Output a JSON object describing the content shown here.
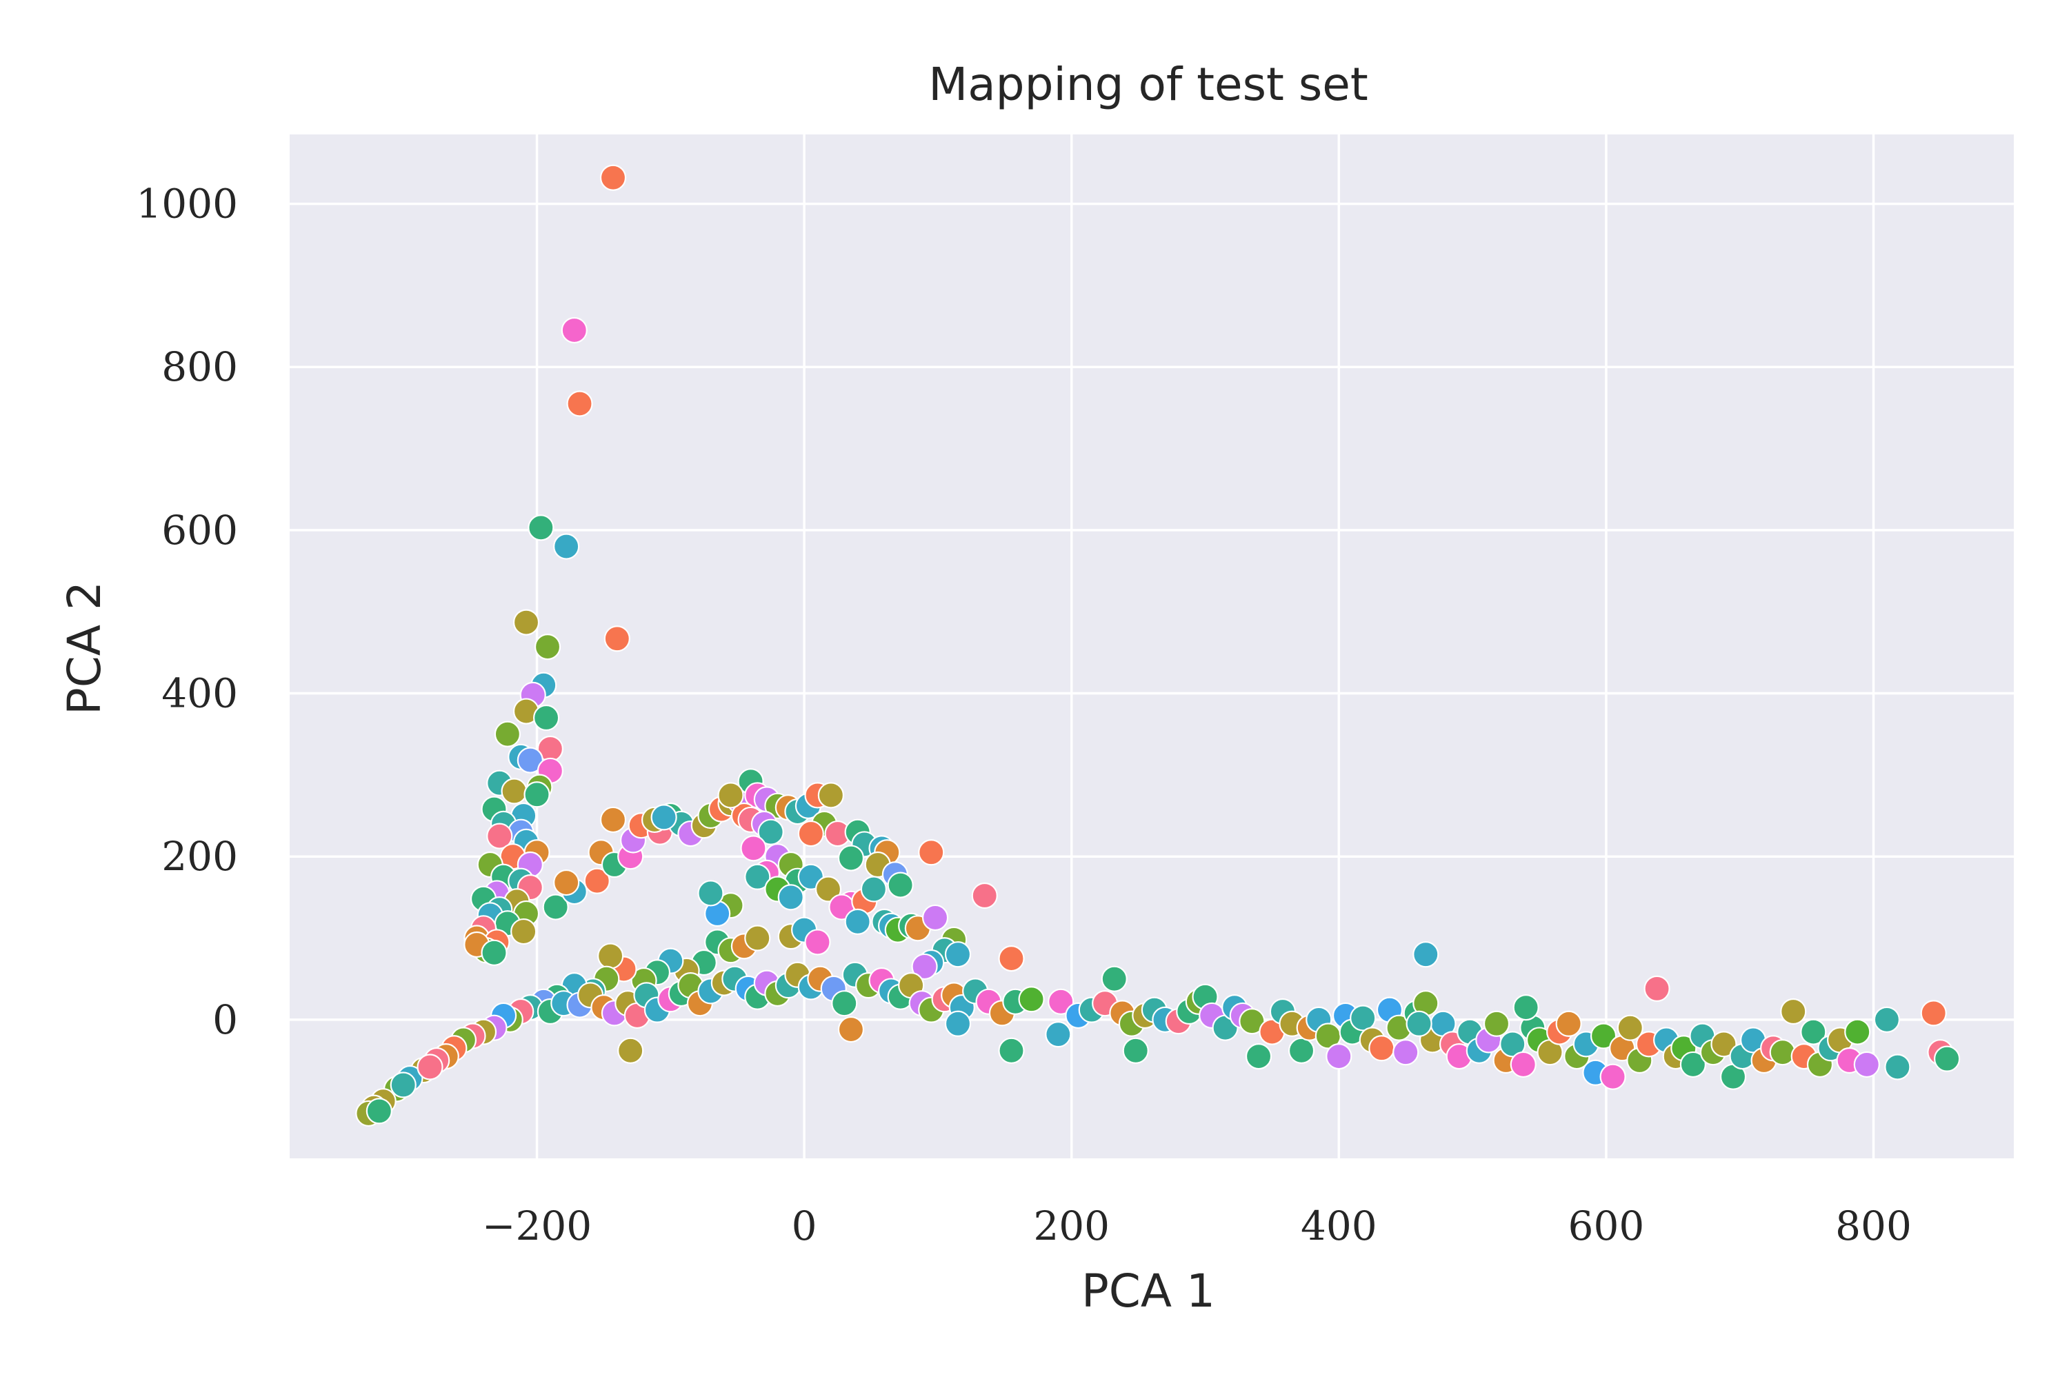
{
  "chart_data": {
    "type": "scatter",
    "title": "Mapping of test set",
    "xlabel": "PCA 1",
    "ylabel": "PCA 2",
    "xlim": [
      -385,
      905
    ],
    "ylim": [
      -170,
      1085
    ],
    "x_ticks": [
      -200,
      0,
      200,
      400,
      600,
      800
    ],
    "x_tick_labels": [
      "−200",
      "0",
      "200",
      "400",
      "600",
      "800"
    ],
    "y_ticks": [
      0,
      200,
      400,
      600,
      800,
      1000
    ],
    "y_tick_labels": [
      "0",
      "200",
      "400",
      "600",
      "800",
      "1000"
    ],
    "grid": true,
    "background": "#eaeaf2",
    "palette": [
      "#f77189",
      "#f7754f",
      "#dc8932",
      "#ae9d31",
      "#77ab31",
      "#33b07a",
      "#36ada4",
      "#38a9c5",
      "#6e9bf4",
      "#cc7af4",
      "#f565cc",
      "#3ba3ec",
      "#50b131",
      "#97a431"
    ],
    "points": [
      [
        -143,
        1032,
        1
      ],
      [
        -172,
        845,
        10
      ],
      [
        -168,
        755,
        1
      ],
      [
        -197,
        603,
        5
      ],
      [
        -178,
        580,
        7
      ],
      [
        -140,
        467,
        1
      ],
      [
        -208,
        487,
        3
      ],
      [
        -192,
        457,
        4
      ],
      [
        -195,
        410,
        7
      ],
      [
        -203,
        398,
        9
      ],
      [
        -208,
        378,
        3
      ],
      [
        -193,
        370,
        5
      ],
      [
        -190,
        332,
        0
      ],
      [
        -222,
        350,
        4
      ],
      [
        -212,
        322,
        7
      ],
      [
        -205,
        318,
        8
      ],
      [
        -190,
        305,
        10
      ],
      [
        -228,
        290,
        6
      ],
      [
        -198,
        285,
        4
      ],
      [
        -217,
        280,
        3
      ],
      [
        -200,
        276,
        5
      ],
      [
        -232,
        258,
        5
      ],
      [
        -210,
        250,
        7
      ],
      [
        -225,
        240,
        6
      ],
      [
        -212,
        230,
        8
      ],
      [
        -228,
        225,
        0
      ],
      [
        -208,
        218,
        7
      ],
      [
        -200,
        205,
        2
      ],
      [
        -218,
        200,
        1
      ],
      [
        -235,
        190,
        4
      ],
      [
        -205,
        190,
        9
      ],
      [
        -225,
        175,
        5
      ],
      [
        -212,
        170,
        6
      ],
      [
        -205,
        162,
        0
      ],
      [
        -230,
        155,
        9
      ],
      [
        -240,
        148,
        5
      ],
      [
        -215,
        145,
        3
      ],
      [
        -228,
        135,
        6
      ],
      [
        -208,
        130,
        4
      ],
      [
        -235,
        128,
        7
      ],
      [
        -222,
        118,
        5
      ],
      [
        -240,
        112,
        0
      ],
      [
        -210,
        108,
        3
      ],
      [
        -245,
        100,
        2
      ],
      [
        -230,
        95,
        1
      ],
      [
        -238,
        85,
        4
      ],
      [
        -245,
        92,
        2
      ],
      [
        -232,
        82,
        5
      ],
      [
        -186,
        138,
        5
      ],
      [
        -172,
        157,
        7
      ],
      [
        -178,
        168,
        2
      ],
      [
        -155,
        170,
        1
      ],
      [
        -152,
        205,
        2
      ],
      [
        -142,
        190,
        5
      ],
      [
        -130,
        200,
        10
      ],
      [
        -128,
        220,
        9
      ],
      [
        -143,
        245,
        2
      ],
      [
        -122,
        238,
        1
      ],
      [
        -108,
        230,
        0
      ],
      [
        -112,
        245,
        3
      ],
      [
        -100,
        250,
        5
      ],
      [
        -92,
        240,
        6
      ],
      [
        -85,
        228,
        9
      ],
      [
        -75,
        238,
        3
      ],
      [
        -70,
        250,
        4
      ],
      [
        -62,
        258,
        1
      ],
      [
        -55,
        265,
        3
      ],
      [
        -48,
        268,
        9
      ],
      [
        -40,
        292,
        5
      ],
      [
        -35,
        275,
        10
      ],
      [
        -28,
        270,
        9
      ],
      [
        -20,
        262,
        4
      ],
      [
        -12,
        260,
        2
      ],
      [
        -5,
        255,
        6
      ],
      [
        3,
        262,
        7
      ],
      [
        10,
        275,
        1
      ],
      [
        20,
        275,
        3
      ],
      [
        15,
        240,
        4
      ],
      [
        25,
        228,
        0
      ],
      [
        5,
        228,
        1
      ],
      [
        40,
        230,
        5
      ],
      [
        45,
        215,
        6
      ],
      [
        35,
        198,
        5
      ],
      [
        58,
        210,
        7
      ],
      [
        62,
        205,
        2
      ],
      [
        55,
        190,
        3
      ],
      [
        68,
        178,
        8
      ],
      [
        72,
        165,
        5
      ],
      [
        95,
        205,
        1
      ],
      [
        -105,
        248,
        7
      ],
      [
        -45,
        250,
        1
      ],
      [
        -40,
        245,
        0
      ],
      [
        -30,
        240,
        9
      ],
      [
        -55,
        275,
        3
      ],
      [
        -25,
        230,
        6
      ],
      [
        -38,
        210,
        10
      ],
      [
        -20,
        200,
        9
      ],
      [
        -10,
        190,
        4
      ],
      [
        -28,
        180,
        10
      ],
      [
        -35,
        175,
        6
      ],
      [
        -5,
        170,
        5
      ],
      [
        5,
        175,
        7
      ],
      [
        -55,
        140,
        4
      ],
      [
        -65,
        130,
        11
      ],
      [
        -70,
        155,
        6
      ],
      [
        -20,
        160,
        12
      ],
      [
        -10,
        150,
        7
      ],
      [
        18,
        160,
        3
      ],
      [
        35,
        142,
        10
      ],
      [
        28,
        138,
        10
      ],
      [
        45,
        145,
        1
      ],
      [
        52,
        160,
        6
      ],
      [
        40,
        120,
        7
      ],
      [
        60,
        120,
        6
      ],
      [
        65,
        115,
        7
      ],
      [
        70,
        110,
        12
      ],
      [
        80,
        115,
        5
      ],
      [
        85,
        112,
        2
      ],
      [
        98,
        125,
        9
      ],
      [
        112,
        98,
        4
      ],
      [
        105,
        85,
        6
      ],
      [
        115,
        80,
        7
      ],
      [
        95,
        70,
        7
      ],
      [
        90,
        65,
        9
      ],
      [
        135,
        152,
        0
      ],
      [
        155,
        75,
        1
      ],
      [
        -65,
        95,
        5
      ],
      [
        -75,
        70,
        5
      ],
      [
        -55,
        85,
        4
      ],
      [
        -45,
        90,
        2
      ],
      [
        -35,
        100,
        3
      ],
      [
        -10,
        102,
        3
      ],
      [
        0,
        110,
        7
      ],
      [
        10,
        95,
        10
      ],
      [
        -88,
        60,
        3
      ],
      [
        -100,
        72,
        7
      ],
      [
        -110,
        58,
        5
      ],
      [
        -120,
        48,
        4
      ],
      [
        -135,
        62,
        1
      ],
      [
        -145,
        78,
        3
      ],
      [
        -148,
        50,
        4
      ],
      [
        -158,
        35,
        6
      ],
      [
        -172,
        42,
        7
      ],
      [
        -185,
        28,
        5
      ],
      [
        -195,
        22,
        8
      ],
      [
        -205,
        15,
        6
      ],
      [
        -212,
        10,
        0
      ],
      [
        -220,
        0,
        4
      ],
      [
        -225,
        5,
        11
      ],
      [
        -232,
        -10,
        9
      ],
      [
        -240,
        -15,
        3
      ],
      [
        -248,
        -20,
        0
      ],
      [
        -255,
        -25,
        4
      ],
      [
        -262,
        -35,
        1
      ],
      [
        -268,
        -45,
        2
      ],
      [
        -275,
        -50,
        0
      ],
      [
        -285,
        -62,
        3
      ],
      [
        -295,
        -72,
        7
      ],
      [
        -305,
        -85,
        4
      ],
      [
        -315,
        -100,
        3
      ],
      [
        -322,
        -108,
        3
      ],
      [
        -326,
        -115,
        13
      ],
      [
        -318,
        -112,
        5
      ],
      [
        -300,
        -80,
        6
      ],
      [
        -280,
        -58,
        0
      ],
      [
        -190,
        10,
        5
      ],
      [
        -180,
        20,
        7
      ],
      [
        -168,
        18,
        8
      ],
      [
        -160,
        30,
        3
      ],
      [
        -150,
        15,
        2
      ],
      [
        -142,
        8,
        9
      ],
      [
        -132,
        20,
        3
      ],
      [
        -125,
        5,
        0
      ],
      [
        -118,
        30,
        6
      ],
      [
        -110,
        12,
        7
      ],
      [
        -100,
        25,
        10
      ],
      [
        -92,
        32,
        5
      ],
      [
        -85,
        42,
        4
      ],
      [
        -78,
        20,
        2
      ],
      [
        -70,
        35,
        7
      ],
      [
        -60,
        45,
        3
      ],
      [
        -52,
        50,
        6
      ],
      [
        -42,
        38,
        11
      ],
      [
        -35,
        28,
        5
      ],
      [
        -28,
        45,
        9
      ],
      [
        -20,
        32,
        4
      ],
      [
        -12,
        42,
        6
      ],
      [
        -5,
        55,
        3
      ],
      [
        5,
        40,
        7
      ],
      [
        12,
        50,
        2
      ],
      [
        22,
        38,
        8
      ],
      [
        30,
        20,
        5
      ],
      [
        38,
        55,
        6
      ],
      [
        48,
        42,
        4
      ],
      [
        58,
        48,
        10
      ],
      [
        65,
        35,
        7
      ],
      [
        72,
        28,
        5
      ],
      [
        80,
        42,
        3
      ],
      [
        88,
        20,
        9
      ],
      [
        95,
        12,
        4
      ],
      [
        105,
        25,
        0
      ],
      [
        112,
        30,
        2
      ],
      [
        118,
        15,
        7
      ],
      [
        128,
        35,
        6
      ],
      [
        138,
        22,
        10
      ],
      [
        148,
        8,
        2
      ],
      [
        158,
        22,
        5
      ],
      [
        170,
        25,
        12
      ],
      [
        -130,
        -38,
        3
      ],
      [
        35,
        -12,
        2
      ],
      [
        115,
        -5,
        7
      ],
      [
        155,
        -38,
        5
      ],
      [
        190,
        -18,
        7
      ],
      [
        192,
        22,
        10
      ],
      [
        205,
        5,
        11
      ],
      [
        215,
        12,
        6
      ],
      [
        225,
        20,
        0
      ],
      [
        232,
        50,
        5
      ],
      [
        238,
        8,
        2
      ],
      [
        245,
        -5,
        4
      ],
      [
        248,
        -38,
        5
      ],
      [
        255,
        5,
        3
      ],
      [
        262,
        12,
        6
      ],
      [
        270,
        0,
        7
      ],
      [
        280,
        -2,
        0
      ],
      [
        288,
        10,
        5
      ],
      [
        295,
        22,
        4
      ],
      [
        300,
        28,
        5
      ],
      [
        305,
        5,
        9
      ],
      [
        315,
        -10,
        6
      ],
      [
        322,
        15,
        7
      ],
      [
        328,
        5,
        9
      ],
      [
        335,
        -2,
        4
      ],
      [
        340,
        -45,
        5
      ],
      [
        350,
        -15,
        1
      ],
      [
        358,
        10,
        6
      ],
      [
        365,
        -5,
        3
      ],
      [
        372,
        -38,
        5
      ],
      [
        378,
        -10,
        2
      ],
      [
        385,
        0,
        7
      ],
      [
        392,
        -20,
        4
      ],
      [
        400,
        -45,
        9
      ],
      [
        405,
        5,
        11
      ],
      [
        410,
        -15,
        5
      ],
      [
        418,
        2,
        6
      ],
      [
        425,
        -25,
        3
      ],
      [
        432,
        -35,
        1
      ],
      [
        438,
        12,
        11
      ],
      [
        445,
        -10,
        4
      ],
      [
        450,
        -40,
        9
      ],
      [
        458,
        8,
        5
      ],
      [
        465,
        20,
        4
      ],
      [
        470,
        -25,
        3
      ],
      [
        478,
        -5,
        7
      ],
      [
        485,
        -30,
        0
      ],
      [
        490,
        -45,
        10
      ],
      [
        498,
        -15,
        6
      ],
      [
        505,
        -38,
        7
      ],
      [
        512,
        -25,
        9
      ],
      [
        518,
        -5,
        4
      ],
      [
        525,
        -50,
        2
      ],
      [
        530,
        -30,
        6
      ],
      [
        538,
        -55,
        10
      ],
      [
        545,
        -10,
        5
      ],
      [
        550,
        -25,
        12
      ],
      [
        558,
        -40,
        3
      ],
      [
        565,
        -15,
        1
      ],
      [
        572,
        -5,
        2
      ],
      [
        578,
        -45,
        4
      ],
      [
        585,
        -30,
        7
      ],
      [
        592,
        -65,
        11
      ],
      [
        598,
        -20,
        12
      ],
      [
        605,
        -70,
        10
      ],
      [
        612,
        -35,
        2
      ],
      [
        618,
        -10,
        3
      ],
      [
        625,
        -50,
        4
      ],
      [
        632,
        -30,
        1
      ],
      [
        638,
        38,
        0
      ],
      [
        645,
        -25,
        7
      ],
      [
        652,
        -45,
        3
      ],
      [
        658,
        -35,
        12
      ],
      [
        665,
        -55,
        5
      ],
      [
        672,
        -20,
        6
      ],
      [
        680,
        -40,
        4
      ],
      [
        688,
        -30,
        3
      ],
      [
        695,
        -70,
        5
      ],
      [
        702,
        -45,
        6
      ],
      [
        710,
        -25,
        7
      ],
      [
        718,
        -50,
        2
      ],
      [
        725,
        -35,
        0
      ],
      [
        732,
        -40,
        4
      ],
      [
        740,
        10,
        3
      ],
      [
        748,
        -45,
        1
      ],
      [
        755,
        -15,
        5
      ],
      [
        760,
        -55,
        4
      ],
      [
        768,
        -35,
        6
      ],
      [
        775,
        -25,
        3
      ],
      [
        782,
        -50,
        10
      ],
      [
        788,
        -15,
        12
      ],
      [
        795,
        -55,
        9
      ],
      [
        810,
        0,
        6
      ],
      [
        818,
        -58,
        6
      ],
      [
        845,
        8,
        1
      ],
      [
        850,
        -40,
        0
      ],
      [
        855,
        -48,
        5
      ],
      [
        465,
        80,
        7
      ],
      [
        540,
        15,
        5
      ],
      [
        460,
        -5,
        6
      ]
    ]
  }
}
